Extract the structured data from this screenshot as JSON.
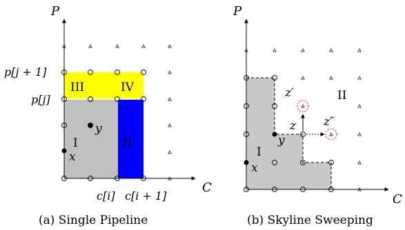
{
  "panel_a": {
    "caption": "(a) Single Pipeline",
    "y_axis_label": "P",
    "x_axis_label": "C",
    "row_label_upper": "p[j + 1]",
    "row_label_lower": "p[j]",
    "col_label_left": "c[i]",
    "col_label_right": "c[i + 1]",
    "region_labels": [
      "I",
      "II",
      "III",
      "IV"
    ],
    "point_labels": [
      "x",
      "y"
    ],
    "colors": {
      "region_gray": "#c0c0c0",
      "region_blue": "#0000ff",
      "region_yellow": "#ffff00"
    }
  },
  "panel_b": {
    "caption": "(b) Skyline Sweeping",
    "y_axis_label": "P",
    "x_axis_label": "C",
    "region_labels": [
      "I",
      "II"
    ],
    "point_labels": [
      "x",
      "y",
      "z",
      "z′",
      "z″"
    ],
    "colors": {
      "region_gray": "#c8c8c8",
      "highlight_circle": "#ff0000"
    }
  }
}
